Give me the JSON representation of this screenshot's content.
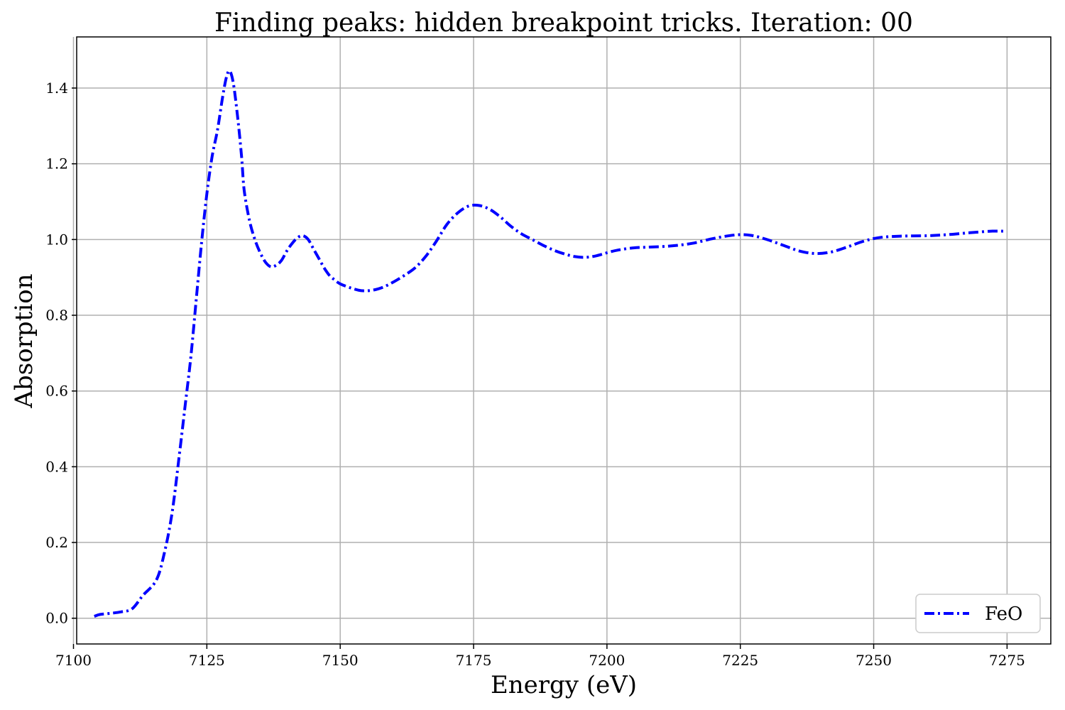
{
  "chart_data": {
    "type": "line",
    "title": "Finding peaks: hidden breakpoint tricks. Iteration: 00",
    "xlabel": "Energy (eV)",
    "ylabel": "Absorption",
    "xlim": [
      7100.6,
      7283.2
    ],
    "ylim": [
      -0.068,
      1.535
    ],
    "grid": true,
    "legend_position": "bottom-right",
    "x_ticks": [
      7100,
      7125,
      7150,
      7175,
      7200,
      7225,
      7250,
      7275
    ],
    "x_tick_labels": [
      "7100",
      "7125",
      "7150",
      "7175",
      "7200",
      "7225",
      "7250",
      "7275"
    ],
    "y_ticks": [
      0.0,
      0.2,
      0.4,
      0.6,
      0.8,
      1.0,
      1.2,
      1.4
    ],
    "y_tick_labels": [
      "0.0",
      "0.2",
      "0.4",
      "0.6",
      "0.8",
      "1.0",
      "1.2",
      "1.4"
    ],
    "series": [
      {
        "name": "FeO",
        "color": "#0000ff",
        "line_style": "dash-dot",
        "x": [
          7103.9,
          7105.0,
          7107.0,
          7109.0,
          7111.0,
          7113.0,
          7115.5,
          7117.0,
          7118.5,
          7120.0,
          7121.0,
          7122.0,
          7123.0,
          7124.0,
          7125.0,
          7126.0,
          7127.0,
          7128.0,
          7128.7,
          7129.3,
          7130.0,
          7130.8,
          7131.5,
          7132.0,
          7133.0,
          7134.0,
          7135.0,
          7136.0,
          7137.0,
          7138.0,
          7139.0,
          7140.0,
          7141.0,
          7142.0,
          7143.0,
          7144.0,
          7145.0,
          7146.0,
          7147.0,
          7148.0,
          7149.0,
          7150.0,
          7152.0,
          7154.0,
          7156.0,
          7158.0,
          7160.0,
          7162.0,
          7164.0,
          7166.0,
          7168.0,
          7170.0,
          7172.0,
          7174.0,
          7176.0,
          7178.0,
          7180.0,
          7182.0,
          7184.0,
          7186.0,
          7188.0,
          7190.0,
          7192.0,
          7194.0,
          7196.0,
          7198.0,
          7200.0,
          7202.0,
          7205.0,
          7208.0,
          7212.0,
          7216.0,
          7220.0,
          7224.0,
          7227.0,
          7230.0,
          7233.0,
          7236.0,
          7239.0,
          7242.0,
          7245.0,
          7248.0,
          7251.0,
          7255.0,
          7260.0,
          7264.0,
          7268.0,
          7272.0,
          7274.5
        ],
        "y": [
          0.005,
          0.01,
          0.013,
          0.017,
          0.025,
          0.06,
          0.1,
          0.17,
          0.28,
          0.45,
          0.57,
          0.69,
          0.84,
          0.99,
          1.12,
          1.22,
          1.29,
          1.38,
          1.43,
          1.445,
          1.41,
          1.32,
          1.22,
          1.13,
          1.05,
          1.0,
          0.965,
          0.94,
          0.928,
          0.932,
          0.945,
          0.97,
          0.99,
          1.005,
          1.01,
          1.0,
          0.975,
          0.95,
          0.925,
          0.905,
          0.893,
          0.883,
          0.872,
          0.865,
          0.866,
          0.874,
          0.888,
          0.905,
          0.925,
          0.955,
          0.995,
          1.04,
          1.07,
          1.088,
          1.09,
          1.08,
          1.06,
          1.035,
          1.015,
          1.0,
          0.985,
          0.972,
          0.962,
          0.955,
          0.953,
          0.957,
          0.965,
          0.972,
          0.978,
          0.98,
          0.983,
          0.99,
          1.003,
          1.012,
          1.011,
          1.0,
          0.985,
          0.97,
          0.963,
          0.967,
          0.98,
          0.995,
          1.005,
          1.009,
          1.01,
          1.013,
          1.018,
          1.022,
          1.022
        ]
      }
    ]
  }
}
